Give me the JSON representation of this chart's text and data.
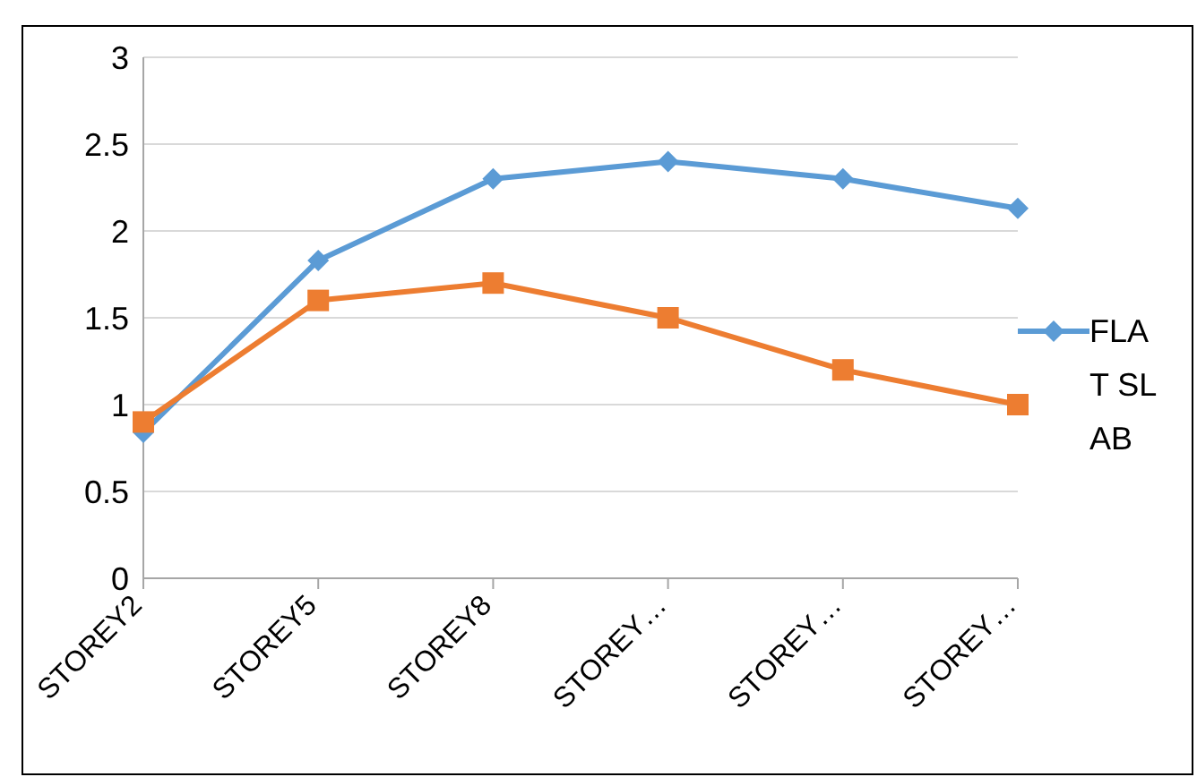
{
  "chart_data": {
    "type": "line",
    "categories": [
      "STOREY2",
      "STOREY5",
      "STOREY8",
      "STOREY…",
      "STOREY…",
      "STOREY…"
    ],
    "series": [
      {
        "name": "FLAT SLAB",
        "color": "#5b9bd5",
        "marker": "diamond",
        "values": [
          0.84,
          1.83,
          2.3,
          2.4,
          2.3,
          2.13
        ]
      },
      {
        "color": "#ed7d31",
        "marker": "square",
        "values": [
          0.9,
          1.6,
          1.7,
          1.5,
          1.2,
          1.0
        ]
      }
    ],
    "ylim": [
      0,
      3
    ],
    "yticks": [
      0,
      0.5,
      1,
      1.5,
      2,
      2.5,
      3
    ],
    "grid": "y",
    "legend": "right"
  }
}
